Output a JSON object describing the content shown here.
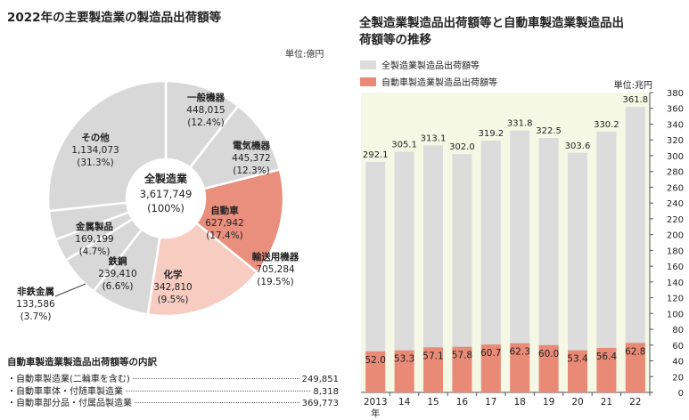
{
  "left": {
    "title": "2022年の主要製造業の製造品出荷額等",
    "unit": "単位:億円",
    "center": {
      "name": "全製造業",
      "value": "3,617,749",
      "pct": "(100%)"
    }
  },
  "right": {
    "title_line1": "全製造業製造品出荷額等と自動車製造業製造品出",
    "title_line2": "荷額等の推移",
    "unit": "単位:兆円",
    "legend": [
      "全製造業製造品出荷額等",
      "自動車製造業製造品出荷額等"
    ]
  },
  "breakdown": {
    "title": "自動車製造業製造品出荷額等の内訳",
    "rows": [
      {
        "label": "・自動車製造業(二輪車を含む)",
        "value": "249,851"
      },
      {
        "label": "・自動車車体・付随車製造業",
        "value": "8,318"
      },
      {
        "label": "・自動車部分品・付属品製造業",
        "value": "369,773"
      }
    ]
  },
  "chart_data": [
    {
      "type": "pie",
      "title": "2022年の主要製造業の製造品出荷額等",
      "unit": "単位:億円",
      "center_label": [
        "全製造業",
        "3,617,749",
        "(100%)"
      ],
      "slices": [
        {
          "name": "一般機器",
          "value": 448015,
          "value_label": "448,015",
          "pct": "(12.4%)",
          "color": "#d8d8d8"
        },
        {
          "name": "電気機器",
          "value": 445372,
          "value_label": "445,372",
          "pct": "(12.3%)",
          "color": "#d8d8d8"
        },
        {
          "name": "自動車",
          "value": 627942,
          "value_label": "627,942",
          "pct": "(17.4%)",
          "color": "#ea8f7d"
        },
        {
          "name": "輸送用機器",
          "value": 705284,
          "value_label": "705,284",
          "pct": "(19.5%)",
          "color": "#f7cdc2"
        },
        {
          "name": "化学",
          "value": 342810,
          "value_label": "342,810",
          "pct": "(9.5%)",
          "color": "#d8d8d8"
        },
        {
          "name": "鉄鋼",
          "value": 239410,
          "value_label": "239,410",
          "pct": "(6.6%)",
          "color": "#d8d8d8"
        },
        {
          "name": "非鉄金属",
          "value": 133586,
          "value_label": "133,586",
          "pct": "(3.7%)",
          "color": "#d8d8d8"
        },
        {
          "name": "金属製品",
          "value": 169199,
          "value_label": "169,199",
          "pct": "(4.7%)",
          "color": "#d8d8d8"
        },
        {
          "name": "その他",
          "value": 1134073,
          "value_label": "1,134,073",
          "pct": "(31.3%)",
          "color": "#d8d8d8"
        }
      ]
    },
    {
      "type": "bar",
      "title": "全製造業製造品出荷額等と自動車製造業製造品出荷額等の推移",
      "unit": "単位:兆円",
      "categories": [
        "2013",
        "14",
        "15",
        "16",
        "17",
        "18",
        "19",
        "20",
        "21",
        "22"
      ],
      "category_suffix": "年",
      "series": [
        {
          "name": "全製造業製造品出荷額等",
          "values": [
            292.1,
            305.1,
            313.1,
            302.0,
            319.2,
            331.8,
            322.5,
            303.6,
            330.2,
            361.8
          ],
          "labels": [
            "292.1",
            "305.1",
            "313.1",
            "302.0",
            "319.2",
            "331.8",
            "322.5",
            "303.6",
            "330.2",
            "361.8"
          ],
          "color": "#dcdcdc"
        },
        {
          "name": "自動車製造業製造品出荷額等",
          "values": [
            52.0,
            53.3,
            57.1,
            57.8,
            60.7,
            62.3,
            60.0,
            53.4,
            56.4,
            62.8
          ],
          "labels": [
            "52.0",
            "53.3",
            "57.1",
            "57.8",
            "60.7",
            "62.3",
            "60.0",
            "53.4",
            "56.4",
            "62.8"
          ],
          "color": "#e98a76"
        }
      ],
      "ylim": [
        0,
        380
      ],
      "yticks": [
        0,
        20,
        40,
        60,
        80,
        100,
        120,
        140,
        160,
        180,
        200,
        220,
        240,
        260,
        280,
        300,
        320,
        340,
        360,
        380
      ],
      "y_axis_side": "right",
      "grid": false,
      "background": "#f4f8e4"
    }
  ]
}
